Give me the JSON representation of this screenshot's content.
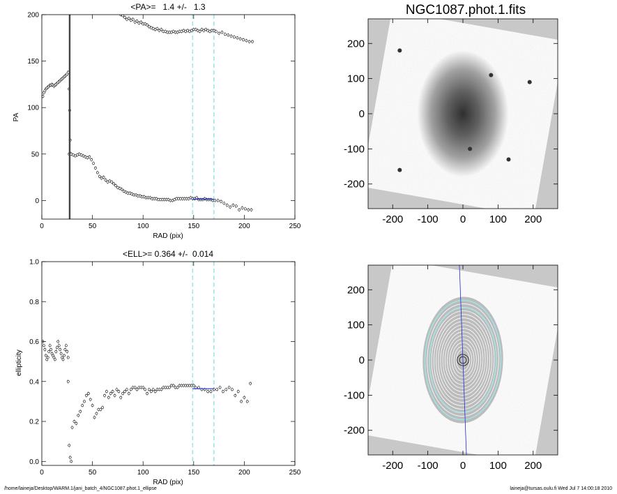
{
  "footer": {
    "left": "/home/laineja/Desktop/WARM.1/jani_batch_4/NGC1087.phot.1_ellipse",
    "right": "laineja@tursas.oulu.fi  Wed Jul  7 14:00:18 2010"
  },
  "colors": {
    "cyan_marker": "#9fe6ea",
    "fit_line": "#1a2fd0",
    "grey_bg": "#c8c8c8"
  },
  "chart_data": [
    {
      "type": "scatter",
      "title": "<PA>=   1.4 +/-   1.3",
      "xlabel": "RAD (pix)",
      "ylabel": "PA",
      "xlim": [
        0,
        250
      ],
      "ylim": [
        -20,
        200
      ],
      "xticks": [
        0,
        50,
        100,
        150,
        200,
        250
      ],
      "yticks": [
        0,
        50,
        100,
        150,
        200
      ],
      "vlines": [
        149,
        170
      ],
      "fit_range": [
        149,
        170
      ],
      "fit_value": 1.4,
      "series": [
        {
          "x": [
            1,
            2,
            3,
            4,
            5,
            6,
            7,
            8,
            9,
            10,
            11,
            12,
            13,
            14,
            15,
            16,
            17,
            18,
            19,
            20,
            21,
            22,
            23,
            24,
            25,
            26
          ],
          "y": [
            112,
            116,
            118,
            120,
            121,
            122,
            123,
            124,
            124,
            125,
            124,
            123,
            124,
            125,
            126,
            127,
            128,
            129,
            130,
            131,
            132,
            133,
            134,
            135,
            136,
            138
          ]
        },
        {
          "x": [
            27,
            27.5,
            28
          ],
          "y": [
            120,
            97,
            65
          ]
        },
        {
          "x": [
            27,
            28,
            29,
            31,
            33,
            35,
            37,
            39,
            41,
            43,
            45,
            47,
            49,
            51,
            53,
            55,
            57,
            59,
            61,
            63,
            65,
            67,
            69,
            71,
            73,
            75,
            77,
            79,
            81,
            83,
            85,
            87,
            89,
            91,
            93,
            95,
            97,
            99,
            101,
            103,
            105,
            107,
            109,
            111,
            113,
            115,
            117,
            119,
            121,
            123,
            125,
            127,
            129,
            131,
            133,
            135,
            137,
            139,
            141,
            143,
            145,
            147,
            149,
            151,
            153,
            155,
            157,
            159,
            161,
            163,
            165,
            167,
            169,
            171,
            174,
            177,
            180,
            183,
            186,
            189,
            192,
            195,
            198,
            201,
            204,
            207
          ],
          "y": [
            50,
            51,
            50,
            49,
            48,
            49,
            50,
            49,
            48,
            47,
            46,
            47,
            44,
            40,
            35,
            30,
            26,
            24,
            25,
            22,
            20,
            21,
            20,
            18,
            16,
            14,
            13,
            12,
            10,
            9,
            8,
            8,
            7,
            6,
            6,
            5,
            5,
            4,
            4,
            3,
            3,
            3,
            2,
            2,
            2,
            1,
            1,
            1,
            1,
            1,
            1,
            0,
            0,
            1,
            2,
            2,
            2,
            2,
            2,
            2,
            2,
            3,
            2,
            2,
            3,
            1,
            1,
            1,
            2,
            1,
            1,
            1,
            0,
            0,
            0,
            -1,
            -3,
            -5,
            -7,
            -5,
            -6,
            -10,
            -8,
            -9,
            -10,
            -10
          ]
        },
        {
          "x": [
            78,
            80,
            82,
            84,
            86,
            88,
            90,
            92,
            94,
            96,
            98,
            100,
            102,
            104,
            106,
            108,
            110,
            112,
            114,
            116,
            118,
            120,
            122,
            124,
            126,
            128,
            130,
            132,
            134,
            136,
            138,
            140,
            142,
            144,
            146,
            148,
            150,
            152,
            154,
            156,
            158,
            160,
            162,
            164,
            166,
            168,
            170,
            172,
            175,
            178,
            181,
            184,
            187,
            190,
            193,
            196,
            199,
            202,
            205,
            208
          ],
          "y": [
            200,
            199,
            197,
            195,
            196,
            194,
            195,
            192,
            193,
            191,
            192,
            190,
            190,
            189,
            187,
            186,
            185,
            184,
            185,
            183,
            184,
            182,
            182,
            181,
            181,
            181,
            182,
            181,
            181,
            182,
            182,
            183,
            182,
            183,
            182,
            183,
            184,
            184,
            183,
            182,
            184,
            183,
            184,
            183,
            182,
            183,
            183,
            182,
            180,
            181,
            179,
            178,
            177,
            176,
            175,
            174,
            173,
            172,
            171,
            171
          ]
        }
      ]
    },
    {
      "type": "scatter",
      "title": "<ELL>= 0.364 +/-  0.014",
      "xlabel": "RAD (pix)",
      "ylabel": "ellipticity",
      "xlim": [
        0,
        250
      ],
      "ylim": [
        -0.02,
        1.0
      ],
      "xticks": [
        0,
        50,
        100,
        150,
        200,
        250
      ],
      "yticks": [
        0.0,
        0.2,
        0.4,
        0.6,
        0.8,
        1.0
      ],
      "vlines": [
        149,
        170
      ],
      "fit_range": [
        149,
        170
      ],
      "fit_value": 0.364,
      "series": [
        {
          "x": [
            1,
            2,
            3,
            4,
            5,
            6,
            7,
            8,
            9,
            10,
            11,
            12,
            13,
            14,
            15,
            16,
            17,
            18,
            19,
            20,
            21,
            22,
            23,
            24,
            25,
            26
          ],
          "y": [
            0.6,
            0.58,
            0.56,
            0.53,
            0.51,
            0.52,
            0.55,
            0.58,
            0.56,
            0.54,
            0.53,
            0.52,
            0.51,
            0.55,
            0.57,
            0.6,
            0.58,
            0.56,
            0.54,
            0.52,
            0.51,
            0.53,
            0.56,
            0.58,
            0.55,
            0.52
          ]
        },
        {
          "x": [
            26,
            27,
            28,
            29,
            30,
            32,
            34,
            36,
            38,
            40,
            42,
            44,
            46,
            48,
            50,
            52,
            54,
            56,
            58,
            60,
            62,
            64,
            66,
            68,
            70,
            72,
            74,
            76,
            78,
            80,
            82,
            84,
            86,
            88,
            90,
            92,
            94,
            96,
            98,
            100,
            102,
            104,
            106,
            108,
            110,
            112,
            114,
            116,
            118,
            120,
            122,
            124,
            126,
            128,
            130,
            132,
            134,
            136,
            138,
            140,
            142,
            144,
            146,
            148,
            150,
            152,
            155,
            158,
            161,
            164,
            167,
            170,
            173,
            176,
            179,
            182,
            185,
            188,
            191,
            194,
            197,
            200,
            203,
            206
          ],
          "y": [
            0.4,
            0.08,
            0.02,
            0.0,
            0.17,
            0.2,
            0.19,
            0.23,
            0.25,
            0.28,
            0.3,
            0.33,
            0.34,
            0.31,
            0.28,
            0.22,
            0.24,
            0.26,
            0.26,
            0.27,
            0.33,
            0.35,
            0.32,
            0.34,
            0.35,
            0.33,
            0.36,
            0.35,
            0.32,
            0.34,
            0.35,
            0.36,
            0.34,
            0.36,
            0.37,
            0.37,
            0.36,
            0.37,
            0.37,
            0.37,
            0.36,
            0.34,
            0.36,
            0.35,
            0.36,
            0.35,
            0.36,
            0.36,
            0.36,
            0.37,
            0.37,
            0.37,
            0.37,
            0.38,
            0.38,
            0.37,
            0.37,
            0.38,
            0.38,
            0.38,
            0.38,
            0.38,
            0.38,
            0.38,
            0.38,
            0.37,
            0.37,
            0.36,
            0.36,
            0.35,
            0.35,
            0.36,
            0.36,
            0.37,
            0.35,
            0.36,
            0.37,
            0.36,
            0.33,
            0.35,
            0.3,
            0.32,
            0.3,
            0.39
          ]
        }
      ]
    },
    {
      "type": "image",
      "title": "NGC1087.phot.1.fits",
      "xlim": [
        -270,
        270
      ],
      "ylim": [
        -270,
        270
      ],
      "xticks": [
        -200,
        -100,
        0,
        100,
        200
      ],
      "yticks": [
        -200,
        -100,
        0,
        100,
        200
      ],
      "galaxy_center": [
        0,
        0
      ],
      "galaxy_extent": [
        130,
        180
      ],
      "rotation_deg": 10,
      "star_positions": [
        [
          -180,
          180
        ],
        [
          -180,
          -160
        ],
        [
          190,
          90
        ],
        [
          20,
          -100
        ],
        [
          130,
          -130
        ],
        [
          80,
          110
        ]
      ]
    },
    {
      "type": "image",
      "xlim": [
        -270,
        270
      ],
      "ylim": [
        -270,
        270
      ],
      "xticks": [
        -200,
        -100,
        0,
        100,
        200
      ],
      "yticks": [
        -200,
        -100,
        0,
        100,
        200
      ],
      "galaxy_center": [
        0,
        0
      ],
      "ellipse_semi_major": [
        12,
        20,
        30,
        40,
        50,
        60,
        70,
        80,
        90,
        100,
        110,
        120,
        130,
        140,
        150,
        160,
        170
      ],
      "ellipse_ellipticity": 0.364,
      "ellipse_pa_deg": 1.4,
      "marker_semi_major": [
        149,
        170
      ],
      "pa_line": [
        [
          -10,
          270
        ],
        [
          10,
          -270
        ]
      ]
    }
  ]
}
